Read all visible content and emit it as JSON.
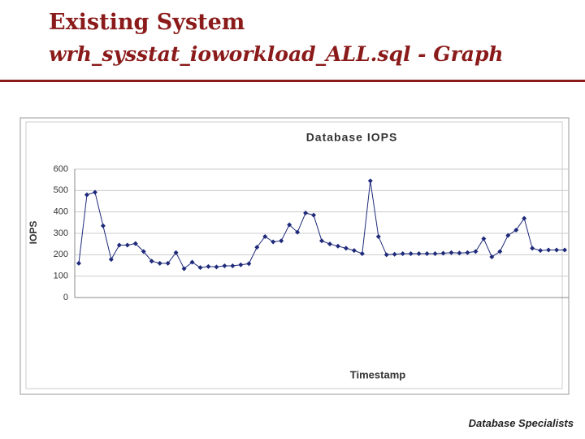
{
  "slide": {
    "title": "Existing System",
    "subtitle": "wrh_sysstat_ioworkload_ALL.sql - Graph",
    "logo": "Database Specialists"
  },
  "chart_data": {
    "type": "line",
    "title": "Database IOPS",
    "x_label": "Timestamp",
    "y_label": "IOPS",
    "categories": [
      null,
      null,
      null,
      null,
      null,
      null,
      null,
      null,
      null,
      null,
      null,
      null,
      null,
      null,
      null,
      null,
      null,
      null,
      null,
      null,
      null,
      null,
      null,
      null,
      null,
      null,
      null,
      null,
      null,
      null,
      null,
      null,
      null,
      null,
      null,
      null,
      null,
      null,
      null,
      null,
      null,
      null,
      null,
      null,
      null,
      null,
      null,
      null,
      null,
      null,
      null,
      null,
      null,
      null,
      null,
      null,
      null,
      null,
      null,
      null,
      null
    ],
    "series": [
      {
        "name": "IOPS",
        "color": "#1f2a7a",
        "values": [
          160,
          480,
          492,
          335,
          178,
          245,
          245,
          252,
          215,
          170,
          160,
          160,
          210,
          135,
          165,
          140,
          145,
          143,
          148,
          148,
          153,
          158,
          235,
          285,
          260,
          265,
          340,
          305,
          395,
          385,
          265,
          250,
          240,
          230,
          220,
          205,
          545,
          285,
          200,
          202,
          205,
          205,
          205,
          205,
          205,
          207,
          210,
          208,
          210,
          215,
          275,
          190,
          215,
          290,
          315,
          370,
          230,
          220,
          222,
          222,
          222
        ]
      }
    ],
    "ylim": [
      0,
      600
    ],
    "yticks": [
      0,
      100,
      200,
      300,
      400,
      500,
      600
    ],
    "grid": true
  }
}
